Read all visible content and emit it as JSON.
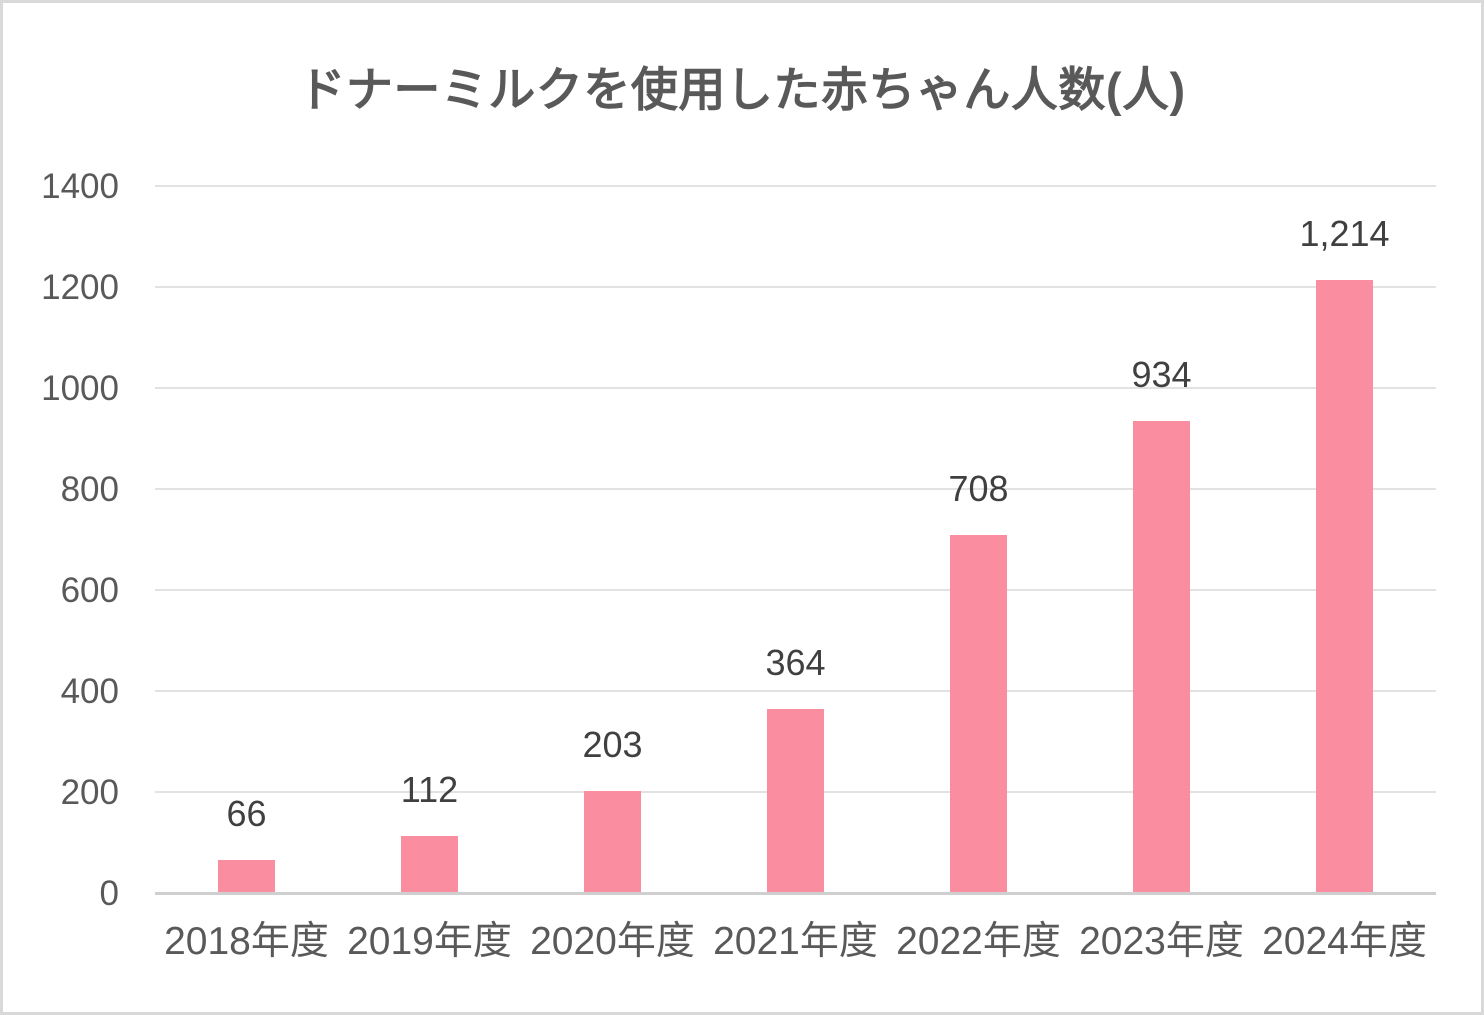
{
  "page": {
    "background_color": "#FFFFFF",
    "border_color": "#D9D9D9"
  },
  "chart_data": {
    "type": "bar",
    "title": "ドナーミルクを使用した赤ちゃん人数(人)",
    "categories": [
      "2018年度",
      "2019年度",
      "2020年度",
      "2021年度",
      "2022年度",
      "2023年度",
      "2024年度"
    ],
    "values": [
      66,
      112,
      203,
      364,
      708,
      934,
      1214
    ],
    "value_labels": [
      "66",
      "112",
      "203",
      "364",
      "708",
      "934",
      "1,214"
    ],
    "xlabel": "",
    "ylabel": "",
    "ylim": [
      0,
      1400
    ],
    "yticks": [
      0,
      200,
      400,
      600,
      800,
      1000,
      1200,
      1400
    ],
    "grid": true,
    "legend": false,
    "legend_position": "none",
    "bar_color": "#FA8DA0",
    "gridline_color": "#E2E2E2",
    "axis_line_color": "#CFCFCF",
    "axis_label_color": "#595959",
    "value_label_color": "#404040",
    "title_color": "#595959"
  }
}
